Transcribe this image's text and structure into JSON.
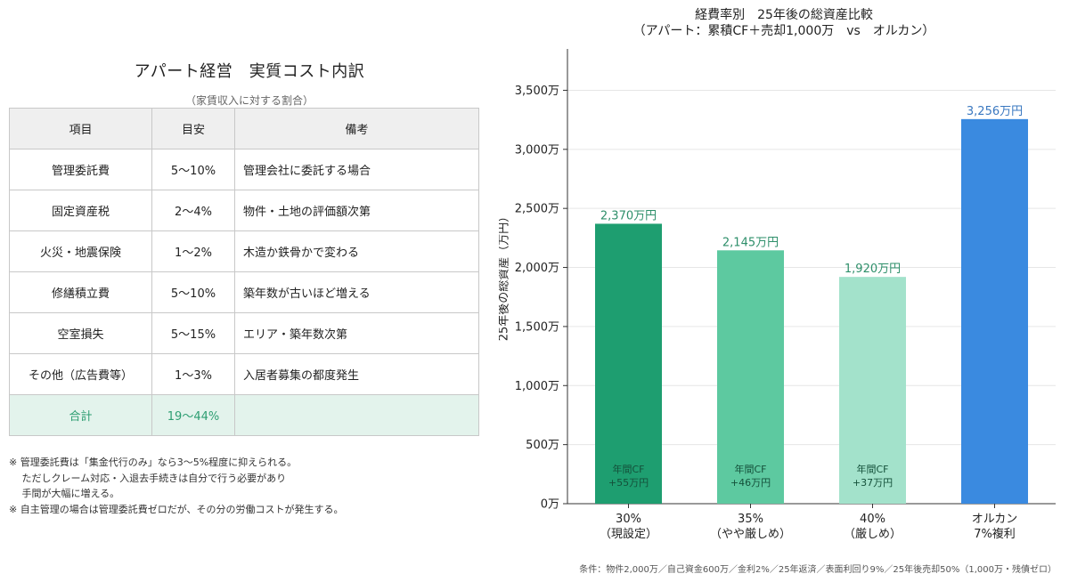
{
  "table": {
    "title": "アパート経営　実質コスト内訳",
    "subtitle": "（家賃収入に対する割合）",
    "headers": [
      "項目",
      "目安",
      "備考"
    ],
    "rows": [
      {
        "item": "管理委託費",
        "range": "5〜10%",
        "note": "管理会社に委託する場合"
      },
      {
        "item": "固定資産税",
        "range": "2〜4%",
        "note": "物件・土地の評価額次第"
      },
      {
        "item": "火災・地震保険",
        "range": "1〜2%",
        "note": "木造か鉄骨かで変わる"
      },
      {
        "item": "修繕積立費",
        "range": "5〜10%",
        "note": "築年数が古いほど増える"
      },
      {
        "item": "空室損失",
        "range": "5〜15%",
        "note": "エリア・築年数次第"
      },
      {
        "item": "その他（広告費等）",
        "range": "1〜3%",
        "note": "入居者募集の都度発生"
      }
    ],
    "total": {
      "item": "合計",
      "range": "19〜44%",
      "note": ""
    },
    "notes": [
      "※ 管理委託費は「集金代行のみ」なら3〜5%程度に抑えられる。",
      "　 ただしクレーム対応・入退去手続きは自分で行う必要があり",
      "　 手間が大幅に増える。",
      "※ 自主管理の場合は管理委託費ゼロだが、その分の労働コストが発生する。"
    ]
  },
  "chart_data": {
    "type": "bar",
    "title": "経費率別　25年後の総資産比較",
    "subtitle": "（アパート：累積CF＋売却1,000万　vs　オルカン）",
    "ylabel": "25年後の総資産（万円）",
    "ylim": [
      0,
      3850
    ],
    "yticks": [
      0,
      500,
      1000,
      1500,
      2000,
      2500,
      3000,
      3500
    ],
    "ytick_labels": [
      "0万",
      "500万",
      "1,000万",
      "1,500万",
      "2,000万",
      "2,500万",
      "3,000万",
      "3,500万"
    ],
    "grid": true,
    "categories": [
      [
        "30%",
        "（現設定）"
      ],
      [
        "35%",
        "（やや厳しめ）"
      ],
      [
        "40%",
        "（厳しめ）"
      ],
      [
        "オルカン",
        "7%複利"
      ]
    ],
    "values": [
      2370,
      2145,
      1920,
      3256
    ],
    "value_labels": [
      "2,370万円",
      "2,145万円",
      "1,920万円",
      "3,256万円"
    ],
    "inner_labels": [
      [
        "年間CF",
        "+55万円"
      ],
      [
        "年間CF",
        "+46万円"
      ],
      [
        "年間CF",
        "+37万円"
      ],
      null
    ],
    "colors": [
      "#1e9e70",
      "#5dc9a0",
      "#a3e2cb",
      "#3a8ae0"
    ],
    "label_colors": [
      "#2e8f6a",
      "#2e8f6a",
      "#2e8f6a",
      "#3a78c0"
    ],
    "footnote": "条件：物件2,000万／自己資金600万／金利2%／25年返済／表面利回り9%／25年後売却50%（1,000万・残債ゼロ）"
  }
}
